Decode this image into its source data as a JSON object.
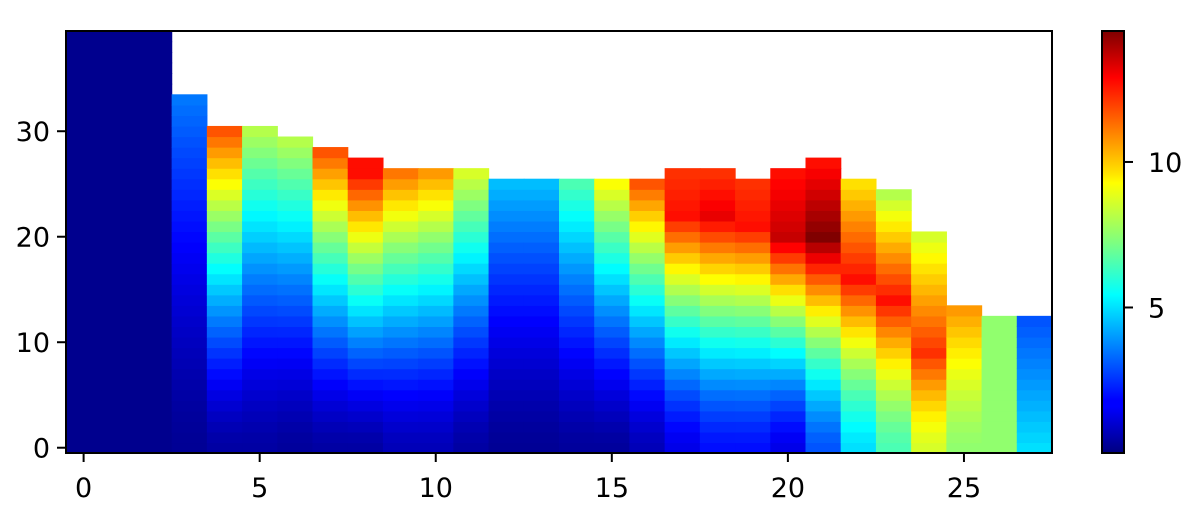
{
  "chart_data": {
    "type": "heatmap",
    "title": "",
    "xlabel": "",
    "ylabel": "",
    "colormap": "jet",
    "x_range": [
      -0.5,
      27.5
    ],
    "y_range": [
      -0.5,
      39.5
    ],
    "x_ticks": [
      0,
      5,
      10,
      15,
      20,
      25
    ],
    "y_ticks": [
      0,
      10,
      20,
      30
    ],
    "colorbar": {
      "range": [
        0,
        14.5
      ],
      "ticks": [
        5,
        10
      ]
    },
    "columns": [
      {
        "x": 0,
        "height": 40,
        "bottom": 0.2,
        "top": 0.2,
        "peak": 0.2,
        "peak_y": 20
      },
      {
        "x": 1,
        "height": 40,
        "bottom": 0.2,
        "top": 0.2,
        "peak": 0.2,
        "peak_y": 20
      },
      {
        "x": 2,
        "height": 40,
        "bottom": 0.2,
        "top": 0.2,
        "peak": 0.2,
        "peak_y": 20
      },
      {
        "x": 3,
        "height": 34,
        "bottom": 0.3,
        "top": 3.5,
        "peak": 3.5,
        "peak_y": 33
      },
      {
        "x": 4,
        "height": 31,
        "bottom": 0.5,
        "top": 11.5,
        "peak": 11.5,
        "peak_y": 30
      },
      {
        "x": 5,
        "height": 31,
        "bottom": 0.5,
        "top": 8.0,
        "peak": 8.0,
        "peak_y": 30
      },
      {
        "x": 6,
        "height": 30,
        "bottom": 0.4,
        "top": 8.0,
        "peak": 8.0,
        "peak_y": 29
      },
      {
        "x": 7,
        "height": 29,
        "bottom": 0.5,
        "top": 11.5,
        "peak": 11.5,
        "peak_y": 28
      },
      {
        "x": 8,
        "height": 28,
        "bottom": 0.5,
        "top": 12.5,
        "peak": 12.5,
        "peak_y": 26
      },
      {
        "x": 9,
        "height": 27,
        "bottom": 0.8,
        "top": 11.0,
        "peak": 11.0,
        "peak_y": 26
      },
      {
        "x": 10,
        "height": 27,
        "bottom": 0.8,
        "top": 10.5,
        "peak": 10.5,
        "peak_y": 26
      },
      {
        "x": 11,
        "height": 27,
        "bottom": 0.5,
        "top": 8.5,
        "peak": 8.5,
        "peak_y": 26
      },
      {
        "x": 12,
        "height": 26,
        "bottom": 0.3,
        "top": 4.5,
        "peak": 4.5,
        "peak_y": 25
      },
      {
        "x": 13,
        "height": 26,
        "bottom": 0.3,
        "top": 4.5,
        "peak": 4.5,
        "peak_y": 25
      },
      {
        "x": 14,
        "height": 26,
        "bottom": 0.4,
        "top": 6.5,
        "peak": 6.5,
        "peak_y": 25
      },
      {
        "x": 15,
        "height": 26,
        "bottom": 0.4,
        "top": 9.0,
        "peak": 9.0,
        "peak_y": 25
      },
      {
        "x": 16,
        "height": 26,
        "bottom": 0.8,
        "top": 11.5,
        "peak": 11.5,
        "peak_y": 25
      },
      {
        "x": 17,
        "height": 27,
        "bottom": 1.5,
        "top": 12.0,
        "peak": 12.5,
        "peak_y": 22
      },
      {
        "x": 18,
        "height": 27,
        "bottom": 2.0,
        "top": 12.0,
        "peak": 13.0,
        "peak_y": 22
      },
      {
        "x": 19,
        "height": 26,
        "bottom": 2.0,
        "top": 12.0,
        "peak": 12.5,
        "peak_y": 21
      },
      {
        "x": 20,
        "height": 27,
        "bottom": 1.5,
        "top": 12.5,
        "peak": 13.5,
        "peak_y": 20
      },
      {
        "x": 21,
        "height": 28,
        "bottom": 3.0,
        "top": 12.5,
        "peak": 14.5,
        "peak_y": 20
      },
      {
        "x": 22,
        "height": 26,
        "bottom": 5.0,
        "top": 9.5,
        "peak": 12.5,
        "peak_y": 16
      },
      {
        "x": 23,
        "height": 25,
        "bottom": 6.5,
        "top": 8.0,
        "peak": 12.5,
        "peak_y": 14
      },
      {
        "x": 24,
        "height": 21,
        "bottom": 8.5,
        "top": 8.5,
        "peak": 12.0,
        "peak_y": 9
      },
      {
        "x": 25,
        "height": 14,
        "bottom": 7.5,
        "top": 10.5,
        "peak": 10.5,
        "peak_y": 13
      },
      {
        "x": 26,
        "height": 13,
        "bottom": 7.5,
        "top": 7.5,
        "peak": 7.5,
        "peak_y": 6
      },
      {
        "x": 27,
        "height": 13,
        "bottom": 5.0,
        "top": 3.0,
        "peak": 5.0,
        "peak_y": 0
      }
    ]
  }
}
